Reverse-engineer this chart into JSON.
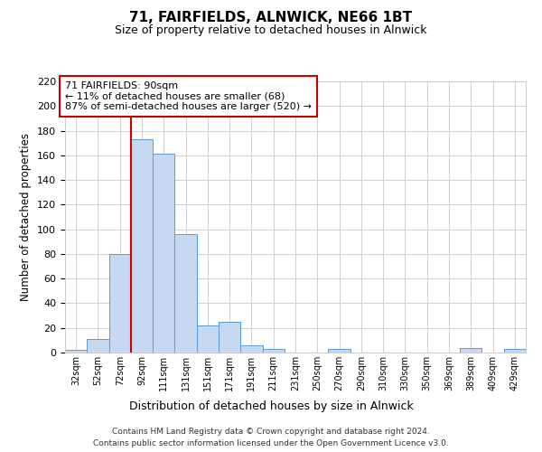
{
  "title": "71, FAIRFIELDS, ALNWICK, NE66 1BT",
  "subtitle": "Size of property relative to detached houses in Alnwick",
  "xlabel": "Distribution of detached houses by size in Alnwick",
  "ylabel": "Number of detached properties",
  "bin_labels": [
    "32sqm",
    "52sqm",
    "72sqm",
    "92sqm",
    "111sqm",
    "131sqm",
    "151sqm",
    "171sqm",
    "191sqm",
    "211sqm",
    "231sqm",
    "250sqm",
    "270sqm",
    "290sqm",
    "310sqm",
    "330sqm",
    "350sqm",
    "369sqm",
    "389sqm",
    "409sqm",
    "429sqm"
  ],
  "bar_values": [
    2,
    11,
    80,
    173,
    161,
    96,
    22,
    25,
    6,
    3,
    0,
    0,
    3,
    0,
    0,
    0,
    0,
    0,
    4,
    0,
    3
  ],
  "bar_color": "#c6d9f0",
  "bar_edge_color": "#5b9bd5",
  "vline_x_index": 3,
  "vline_color": "#cc0000",
  "ylim": [
    0,
    220
  ],
  "yticks": [
    0,
    20,
    40,
    60,
    80,
    100,
    120,
    140,
    160,
    180,
    200,
    220
  ],
  "annotation_title": "71 FAIRFIELDS: 90sqm",
  "annotation_line1": "← 11% of detached houses are smaller (68)",
  "annotation_line2": "87% of semi-detached houses are larger (520) →",
  "annotation_box_color": "#ffffff",
  "annotation_box_edge": "#cc0000",
  "footer_line1": "Contains HM Land Registry data © Crown copyright and database right 2024.",
  "footer_line2": "Contains public sector information licensed under the Open Government Licence v3.0.",
  "background_color": "#ffffff",
  "grid_color": "#d0d0d0"
}
